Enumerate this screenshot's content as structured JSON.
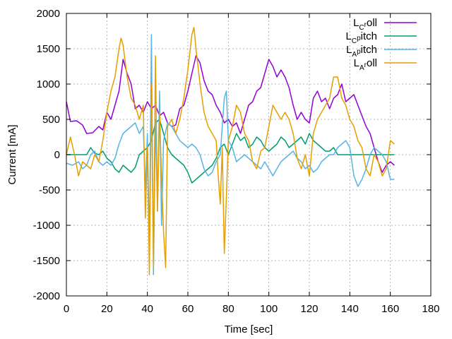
{
  "chart_data": {
    "type": "line",
    "xlabel": "Time [sec]",
    "ylabel": "Current [mA]",
    "xlim": [
      0,
      180
    ],
    "ylim": [
      -2000,
      2000
    ],
    "xticks": [
      0,
      20,
      40,
      60,
      80,
      100,
      120,
      140,
      160,
      180
    ],
    "yticks": [
      -2000,
      -1500,
      -1000,
      -500,
      0,
      500,
      1000,
      1500,
      2000
    ],
    "grid": true,
    "legend_position": "top-right",
    "series": [
      {
        "name": "L_C roll",
        "label_main": "L",
        "label_sub": "C",
        "label_sub2": "r",
        "label_tail": "oll",
        "color": "#9400d3",
        "x": [
          0,
          2,
          5,
          8,
          10,
          13,
          16,
          18,
          20,
          22,
          24,
          26,
          28,
          30,
          32,
          34,
          36,
          38,
          40,
          42,
          44,
          46,
          48,
          50,
          52,
          54,
          56,
          58,
          60,
          62,
          64,
          66,
          68,
          70,
          72,
          74,
          76,
          78,
          80,
          82,
          84,
          86,
          88,
          90,
          92,
          94,
          96,
          98,
          100,
          102,
          104,
          106,
          108,
          110,
          112,
          114,
          116,
          118,
          120,
          122,
          124,
          126,
          128,
          130,
          132,
          134,
          136,
          138,
          140,
          142,
          144,
          146,
          148,
          150,
          152,
          154,
          156,
          158,
          160,
          162
        ],
        "y": [
          750,
          470,
          480,
          420,
          300,
          310,
          400,
          350,
          600,
          500,
          700,
          900,
          1350,
          1150,
          1000,
          650,
          700,
          600,
          750,
          650,
          700,
          550,
          600,
          450,
          400,
          420,
          650,
          700,
          900,
          1150,
          1400,
          1300,
          1050,
          900,
          850,
          700,
          600,
          450,
          500,
          400,
          450,
          300,
          500,
          700,
          750,
          900,
          950,
          1150,
          1350,
          1250,
          1100,
          1200,
          1100,
          950,
          700,
          500,
          600,
          500,
          450,
          800,
          900,
          750,
          800,
          650,
          800,
          850,
          1000,
          750,
          800,
          850,
          700,
          550,
          400,
          300,
          100,
          -100,
          -250,
          -150,
          -100,
          -150
        ]
      },
      {
        "name": "L_C pitch",
        "label_main": "L",
        "label_sub": "C",
        "label_sub2": "p",
        "label_tail": "itch",
        "color": "#009e73",
        "x": [
          0,
          5,
          10,
          12,
          14,
          16,
          18,
          20,
          22,
          24,
          26,
          28,
          30,
          32,
          34,
          36,
          38,
          40,
          42,
          44,
          46,
          48,
          50,
          52,
          54,
          56,
          58,
          60,
          62,
          64,
          66,
          68,
          70,
          72,
          74,
          76,
          78,
          80,
          82,
          84,
          86,
          88,
          90,
          92,
          94,
          96,
          98,
          100,
          102,
          104,
          106,
          108,
          110,
          112,
          114,
          116,
          118,
          120,
          122,
          124,
          126,
          128,
          130,
          132,
          134,
          136,
          138,
          140,
          142,
          144,
          146,
          148,
          150,
          152,
          154,
          156,
          158,
          160,
          162
        ],
        "y": [
          0,
          0,
          0,
          100,
          20,
          0,
          50,
          -50,
          -100,
          -200,
          -250,
          -150,
          -200,
          -250,
          -180,
          0,
          50,
          100,
          200,
          450,
          500,
          300,
          100,
          0,
          -50,
          -100,
          -150,
          -250,
          -400,
          -350,
          -300,
          -250,
          -200,
          -150,
          -50,
          100,
          150,
          0,
          150,
          300,
          200,
          250,
          100,
          150,
          250,
          200,
          100,
          50,
          100,
          150,
          250,
          200,
          100,
          150,
          200,
          250,
          150,
          300,
          200,
          150,
          100,
          50,
          50,
          100,
          0,
          0,
          0,
          0,
          0,
          0,
          0,
          0,
          0,
          0,
          0,
          0,
          0,
          0,
          0
        ]
      },
      {
        "name": "L_A pitch",
        "label_main": "L",
        "label_sub": "A",
        "label_sub2": "p",
        "label_tail": "itch",
        "color": "#56b4e9",
        "x": [
          0,
          3,
          6,
          8,
          10,
          12,
          14,
          16,
          18,
          20,
          22,
          24,
          26,
          28,
          30,
          32,
          34,
          36,
          38,
          39,
          40,
          41,
          42,
          43,
          44,
          45,
          46,
          47,
          48,
          50,
          52,
          54,
          56,
          58,
          60,
          62,
          64,
          66,
          68,
          70,
          72,
          74,
          76,
          77,
          78,
          79,
          80,
          82,
          84,
          86,
          88,
          90,
          92,
          94,
          96,
          98,
          100,
          102,
          104,
          106,
          108,
          110,
          112,
          114,
          116,
          118,
          120,
          122,
          124,
          126,
          128,
          130,
          132,
          134,
          136,
          138,
          140,
          142,
          144,
          146,
          148,
          150,
          152,
          154,
          156,
          158,
          160,
          162
        ],
        "y": [
          -120,
          -150,
          -100,
          -200,
          -150,
          0,
          50,
          -100,
          -150,
          -100,
          -150,
          -50,
          150,
          300,
          350,
          400,
          450,
          300,
          400,
          -500,
          300,
          -1300,
          1700,
          -1700,
          500,
          -800,
          900,
          -1000,
          200,
          450,
          400,
          300,
          200,
          150,
          100,
          150,
          100,
          0,
          -200,
          -300,
          -250,
          -100,
          0,
          400,
          800,
          900,
          200,
          100,
          -100,
          -50,
          0,
          -50,
          -100,
          -150,
          -200,
          -100,
          -200,
          -300,
          -200,
          -100,
          -50,
          0,
          50,
          -50,
          -100,
          -200,
          -150,
          -250,
          -200,
          -100,
          -50,
          0,
          0,
          100,
          150,
          200,
          100,
          -300,
          -450,
          -350,
          -200,
          0,
          100,
          50,
          0,
          -100,
          -350,
          -350
        ]
      },
      {
        "name": "L_A roll",
        "label_main": "L",
        "label_sub": "A",
        "label_sub2": "r",
        "label_tail": "oll",
        "color": "#e69f00",
        "x": [
          0,
          2,
          4,
          6,
          8,
          10,
          12,
          14,
          16,
          18,
          20,
          22,
          24,
          26,
          27,
          28,
          30,
          32,
          34,
          36,
          38,
          39,
          40,
          41,
          42,
          43,
          44,
          45,
          46,
          47,
          48,
          49,
          50,
          52,
          54,
          56,
          58,
          60,
          62,
          63,
          64,
          66,
          68,
          70,
          72,
          74,
          75,
          76,
          77,
          78,
          79,
          80,
          82,
          84,
          86,
          88,
          90,
          92,
          94,
          96,
          98,
          100,
          102,
          104,
          106,
          108,
          110,
          112,
          114,
          116,
          118,
          120,
          122,
          124,
          126,
          128,
          130,
          132,
          134,
          136,
          138,
          140,
          142,
          144,
          146,
          148,
          150,
          152,
          154,
          156,
          158,
          160,
          162
        ],
        "y": [
          0,
          250,
          0,
          -300,
          -100,
          -150,
          -200,
          0,
          -100,
          200,
          600,
          900,
          1100,
          1500,
          1650,
          1550,
          1100,
          800,
          700,
          500,
          700,
          -900,
          100,
          -1700,
          1000,
          -1600,
          1400,
          -800,
          600,
          -300,
          -1100,
          -1600,
          400,
          500,
          300,
          500,
          800,
          1200,
          1700,
          1800,
          1500,
          1000,
          600,
          400,
          300,
          200,
          -300,
          -700,
          100,
          -1400,
          -600,
          200,
          400,
          700,
          600,
          300,
          200,
          -100,
          -200,
          50,
          100,
          400,
          700,
          600,
          500,
          600,
          500,
          300,
          -50,
          -200,
          0,
          -300,
          300,
          500,
          600,
          700,
          800,
          1100,
          1100,
          800,
          700,
          500,
          400,
          200,
          100,
          -200,
          -300,
          0,
          -100,
          -300,
          -200,
          200,
          150
        ]
      }
    ]
  }
}
